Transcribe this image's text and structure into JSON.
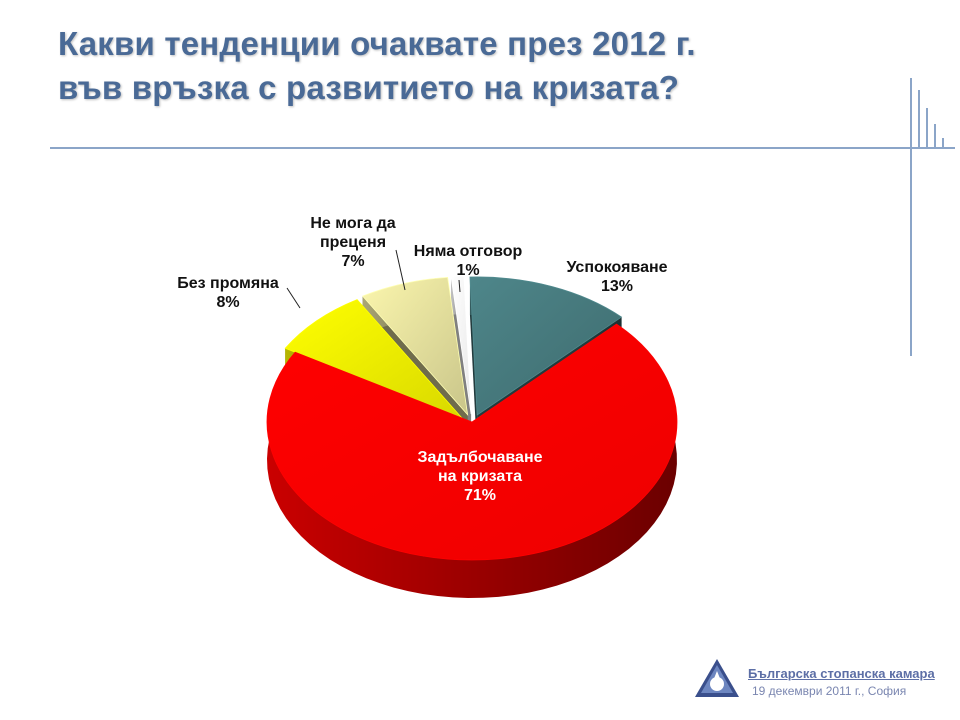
{
  "slide": {
    "title_line1": "Какви тенденции очаквате през 2012 г.",
    "title_line2": "във връзка с развитието на кризата?"
  },
  "footer": {
    "organization": "Българска стопанска камара",
    "date_location": "19 декември 2011 г., София"
  },
  "colors": {
    "title": "#4a6a96",
    "rules": "#8ba5c8"
  },
  "chart_data": {
    "type": "pie",
    "style": "3d-exploded",
    "slices": [
      {
        "label_lines": [
          "Успокояване"
        ],
        "value": 13,
        "value_label": "13%",
        "color": "#3e6b6e"
      },
      {
        "label_lines": [
          "Задълбочаване",
          "на кризата"
        ],
        "value": 71,
        "value_label": "71%",
        "color": "#ee0000"
      },
      {
        "label_lines": [
          "Без промяна"
        ],
        "value": 8,
        "value_label": "8%",
        "color": "#d9d900"
      },
      {
        "label_lines": [
          "Не мога да",
          "преценя"
        ],
        "value": 7,
        "value_label": "7%",
        "color": "#c9c58a"
      },
      {
        "label_lines": [
          "Няма отговор"
        ],
        "value": 1,
        "value_label": "1%",
        "color": "#e8e8e8"
      }
    ]
  }
}
